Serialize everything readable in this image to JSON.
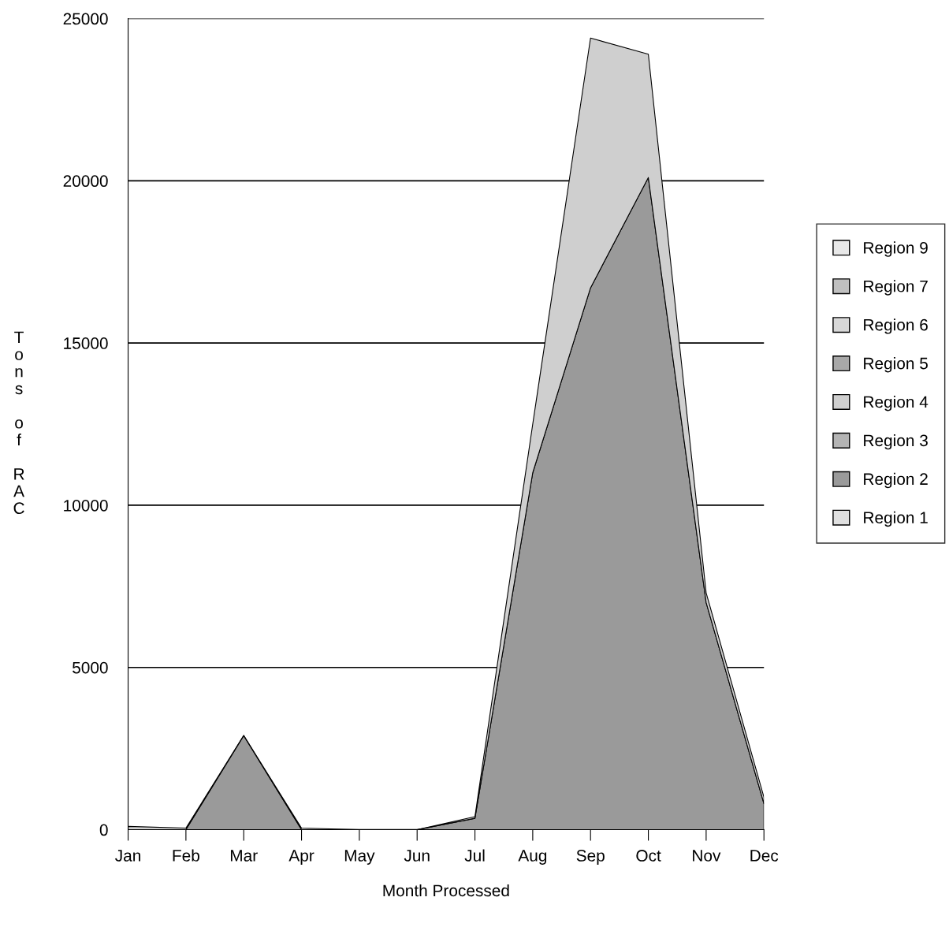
{
  "chart_data": {
    "type": "area",
    "stacked": true,
    "xlabel": "Month Processed",
    "ylabel": "Tons of RAC",
    "categories": [
      "Jan",
      "Feb",
      "Mar",
      "Apr",
      "May",
      "Jun",
      "Jul",
      "Aug",
      "Sep",
      "Oct",
      "Nov",
      "Dec"
    ],
    "series": [
      {
        "name": "Region 1",
        "color": "#e0e0e0",
        "values": [
          null,
          null,
          null,
          null,
          null,
          null,
          null,
          null,
          null,
          null,
          null,
          null
        ]
      },
      {
        "name": "Region 2",
        "color": "#9a9a9a",
        "values": [
          0,
          0,
          2900,
          0,
          0,
          0,
          350,
          11000,
          16700,
          20100,
          7000,
          800
        ]
      },
      {
        "name": "Region 3",
        "color": "#b4b4b4",
        "values": [
          null,
          null,
          null,
          null,
          null,
          null,
          null,
          null,
          null,
          null,
          null,
          null
        ]
      },
      {
        "name": "Region 4",
        "color": "#cfcfcf",
        "values": [
          100,
          50,
          0,
          50,
          0,
          0,
          50,
          1500,
          7700,
          3800,
          300,
          200
        ]
      },
      {
        "name": "Region 5",
        "color": "#a8a8a8",
        "values": [
          null,
          null,
          null,
          null,
          null,
          null,
          null,
          null,
          null,
          null,
          null,
          null
        ]
      },
      {
        "name": "Region 6",
        "color": "#d8d8d8",
        "values": [
          null,
          null,
          null,
          null,
          null,
          null,
          null,
          null,
          null,
          null,
          null,
          null
        ]
      },
      {
        "name": "Region 7",
        "color": "#c0c0c0",
        "values": [
          null,
          null,
          null,
          null,
          null,
          null,
          null,
          null,
          null,
          null,
          null,
          null
        ]
      },
      {
        "name": "Region 9",
        "color": "#e8e8e8",
        "values": [
          null,
          null,
          null,
          null,
          null,
          null,
          null,
          null,
          null,
          null,
          null,
          null
        ]
      }
    ],
    "ylim": [
      0,
      25000
    ],
    "yticks": [
      0,
      5000,
      10000,
      15000,
      20000,
      25000
    ],
    "grid": "y",
    "legend": "right"
  }
}
